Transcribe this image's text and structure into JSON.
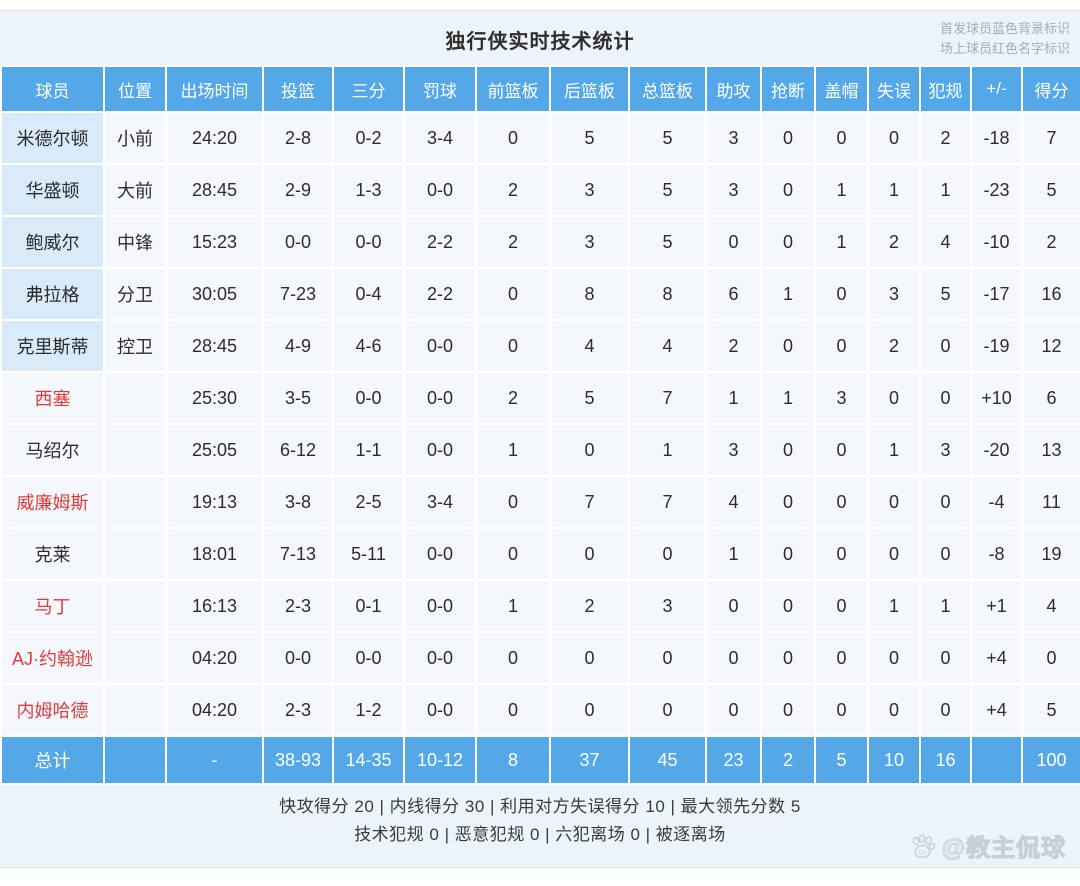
{
  "title": "独行侠实时技术统计",
  "legend": {
    "line1": "首发球员蓝色背景标识",
    "line2": "场上球员红色名字标识"
  },
  "table": {
    "columns": [
      "球员",
      "位置",
      "出场时间",
      "投篮",
      "三分",
      "罚球",
      "前篮板",
      "后篮板",
      "总篮板",
      "助攻",
      "抢断",
      "盖帽",
      "失误",
      "犯规",
      "+/-",
      "得分"
    ],
    "rows": [
      {
        "name": "米德尔顿",
        "pos": "小前",
        "starter": true,
        "oncourt": false,
        "stats": [
          "24:20",
          "2-8",
          "0-2",
          "3-4",
          "0",
          "5",
          "5",
          "3",
          "0",
          "0",
          "0",
          "2",
          "-18",
          "7"
        ]
      },
      {
        "name": "华盛顿",
        "pos": "大前",
        "starter": true,
        "oncourt": false,
        "stats": [
          "28:45",
          "2-9",
          "1-3",
          "0-0",
          "2",
          "3",
          "5",
          "3",
          "0",
          "1",
          "1",
          "1",
          "-23",
          "5"
        ]
      },
      {
        "name": "鲍威尔",
        "pos": "中锋",
        "starter": true,
        "oncourt": false,
        "stats": [
          "15:23",
          "0-0",
          "0-0",
          "2-2",
          "2",
          "3",
          "5",
          "0",
          "0",
          "1",
          "2",
          "4",
          "-10",
          "2"
        ]
      },
      {
        "name": "弗拉格",
        "pos": "分卫",
        "starter": true,
        "oncourt": false,
        "stats": [
          "30:05",
          "7-23",
          "0-4",
          "2-2",
          "0",
          "8",
          "8",
          "6",
          "1",
          "0",
          "3",
          "5",
          "-17",
          "16"
        ]
      },
      {
        "name": "克里斯蒂",
        "pos": "控卫",
        "starter": true,
        "oncourt": false,
        "stats": [
          "28:45",
          "4-9",
          "4-6",
          "0-0",
          "0",
          "4",
          "4",
          "2",
          "0",
          "0",
          "2",
          "0",
          "-19",
          "12"
        ]
      },
      {
        "name": "西塞",
        "pos": "",
        "starter": false,
        "oncourt": true,
        "stats": [
          "25:30",
          "3-5",
          "0-0",
          "0-0",
          "2",
          "5",
          "7",
          "1",
          "1",
          "3",
          "0",
          "0",
          "+10",
          "6"
        ]
      },
      {
        "name": "马绍尔",
        "pos": "",
        "starter": false,
        "oncourt": false,
        "stats": [
          "25:05",
          "6-12",
          "1-1",
          "0-0",
          "1",
          "0",
          "1",
          "3",
          "0",
          "0",
          "1",
          "3",
          "-20",
          "13"
        ]
      },
      {
        "name": "威廉姆斯",
        "pos": "",
        "starter": false,
        "oncourt": true,
        "stats": [
          "19:13",
          "3-8",
          "2-5",
          "3-4",
          "0",
          "7",
          "7",
          "4",
          "0",
          "0",
          "0",
          "0",
          "-4",
          "11"
        ]
      },
      {
        "name": "克莱",
        "pos": "",
        "starter": false,
        "oncourt": false,
        "stats": [
          "18:01",
          "7-13",
          "5-11",
          "0-0",
          "0",
          "0",
          "0",
          "1",
          "0",
          "0",
          "0",
          "0",
          "-8",
          "19"
        ]
      },
      {
        "name": "马丁",
        "pos": "",
        "starter": false,
        "oncourt": true,
        "stats": [
          "16:13",
          "2-3",
          "0-1",
          "0-0",
          "1",
          "2",
          "3",
          "0",
          "0",
          "0",
          "1",
          "1",
          "+1",
          "4"
        ]
      },
      {
        "name": "AJ·约翰逊",
        "pos": "",
        "starter": false,
        "oncourt": true,
        "stats": [
          "04:20",
          "0-0",
          "0-0",
          "0-0",
          "0",
          "0",
          "0",
          "0",
          "0",
          "0",
          "0",
          "0",
          "+4",
          "0"
        ]
      },
      {
        "name": "内姆哈德",
        "pos": "",
        "starter": false,
        "oncourt": true,
        "stats": [
          "04:20",
          "2-3",
          "1-2",
          "0-0",
          "0",
          "0",
          "0",
          "0",
          "0",
          "0",
          "0",
          "0",
          "+4",
          "5"
        ]
      }
    ],
    "totals": {
      "name": "总计",
      "pos": "",
      "stats": [
        "-",
        "38-93",
        "14-35",
        "10-12",
        "8",
        "37",
        "45",
        "23",
        "2",
        "5",
        "10",
        "16",
        "",
        "100"
      ]
    }
  },
  "footer": {
    "line1": "快攻得分 20 | 内线得分 30 | 利用对方失误得分 10 | 最大领先分数 5",
    "line2": "技术犯规 0 | 恶意犯规 0 | 六犯离场 0 | 被逐离场"
  },
  "watermark": {
    "icon": "baidu-paw-icon",
    "icon_text": "du",
    "handle": "@教主侃球"
  },
  "colors": {
    "header_blue": "#55a8e8",
    "starter_cell_bg": "#d9eaf9",
    "cell_bg": "#f4f8fc",
    "oncourt_red": "#e03b3b",
    "panel_bg": "#edf3fa"
  }
}
